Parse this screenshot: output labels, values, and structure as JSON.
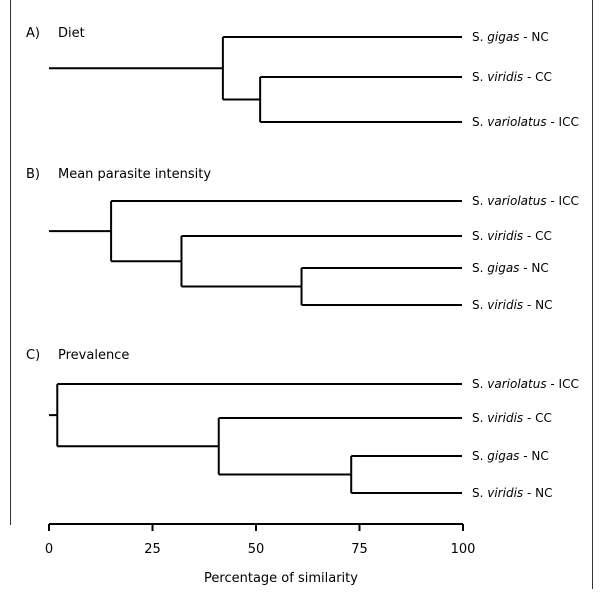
{
  "chart_data": {
    "type": "dendrogram",
    "xlabel": "Percentage of similarity",
    "xlim": [
      0,
      100
    ],
    "xticks": [
      0,
      25,
      50,
      75,
      100
    ],
    "panels": [
      {
        "label": "A)",
        "title": "Diet",
        "leaves": [
          {
            "genus": "S.",
            "species": "gigas",
            "suffix": " - NC"
          },
          {
            "genus": "S.",
            "species": "viridis",
            "suffix": " - CC"
          },
          {
            "genus": "S.",
            "species": "variolatus",
            "suffix": " - ICC"
          }
        ],
        "merges": [
          {
            "children": [
              1,
              2
            ],
            "similarity": 51
          },
          {
            "children": [
              0,
              3
            ],
            "similarity": 42
          }
        ]
      },
      {
        "label": "B)",
        "title": "Mean parasite intensity",
        "leaves": [
          {
            "genus": "S.",
            "species": "variolatus",
            "suffix": " - ICC"
          },
          {
            "genus": "S.",
            "species": "viridis",
            "suffix": " - CC"
          },
          {
            "genus": "S.",
            "species": "gigas",
            "suffix": " - NC"
          },
          {
            "genus": "S.",
            "species": "viridis",
            "suffix": " - NC"
          }
        ],
        "merges": [
          {
            "children": [
              2,
              3
            ],
            "similarity": 61
          },
          {
            "children": [
              1,
              4
            ],
            "similarity": 32
          },
          {
            "children": [
              0,
              5
            ],
            "similarity": 15
          }
        ]
      },
      {
        "label": "C)",
        "title": "Prevalence",
        "leaves": [
          {
            "genus": "S.",
            "species": "variolatus",
            "suffix": " - ICC"
          },
          {
            "genus": "S.",
            "species": "viridis",
            "suffix": " - CC"
          },
          {
            "genus": "S.",
            "species": "gigas",
            "suffix": " - NC"
          },
          {
            "genus": "S.",
            "species": "viridis",
            "suffix": " - NC"
          }
        ],
        "merges": [
          {
            "children": [
              2,
              3
            ],
            "similarity": 73
          },
          {
            "children": [
              1,
              4
            ],
            "similarity": 41
          },
          {
            "children": [
              0,
              5
            ],
            "similarity": 2
          }
        ]
      }
    ]
  }
}
